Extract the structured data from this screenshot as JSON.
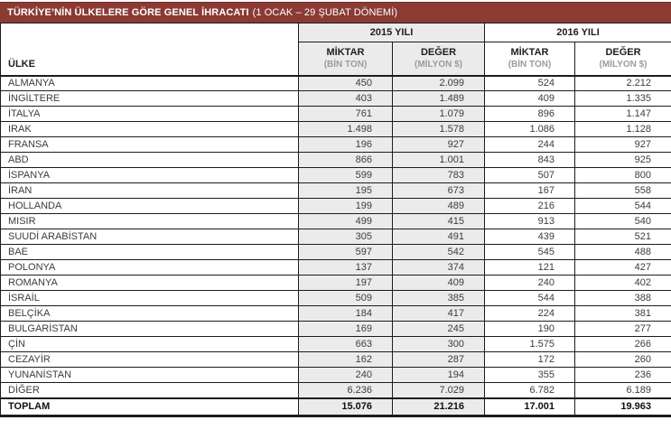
{
  "title": {
    "main": "TÜRKİYE’NİN ÜLKELERE GÖRE GENEL İHRACATI",
    "period": "(1 OCAK – 29 ŞUBAT DÖNEMİ)"
  },
  "colors": {
    "title_bar_bg": "#8b3a34",
    "shaded_column_bg": "#ebebeb",
    "border": "#1c1c1c",
    "unit_text_gray": "#9c9c9c"
  },
  "table": {
    "col_header": "ÜLKE",
    "year_groups": [
      {
        "label": "2015 YILI",
        "shaded": true
      },
      {
        "label": "2016 YILI",
        "shaded": false
      }
    ],
    "sub_headers": [
      {
        "main": "MİKTAR",
        "sub": "(BİN TON)"
      },
      {
        "main": "DEĞER",
        "sub": "(MİLYON $)"
      },
      {
        "main": "MİKTAR",
        "sub": "(BİN TON)"
      },
      {
        "main": "DEĞER",
        "sub": "(MİLYON $)"
      }
    ],
    "rows": [
      {
        "country": "ALMANYA",
        "values": [
          "450",
          "2.099",
          "524",
          "2.212"
        ]
      },
      {
        "country": "İNGİLTERE",
        "values": [
          "403",
          "1.489",
          "409",
          "1.335"
        ]
      },
      {
        "country": "İTALYA",
        "values": [
          "761",
          "1.079",
          "896",
          "1.147"
        ]
      },
      {
        "country": "IRAK",
        "values": [
          "1.498",
          "1.578",
          "1.086",
          "1.128"
        ]
      },
      {
        "country": "FRANSA",
        "values": [
          "196",
          "927",
          "244",
          "927"
        ]
      },
      {
        "country": "ABD",
        "values": [
          "866",
          "1.001",
          "843",
          "925"
        ]
      },
      {
        "country": "İSPANYA",
        "values": [
          "599",
          "783",
          "507",
          "800"
        ]
      },
      {
        "country": "İRAN",
        "values": [
          "195",
          "673",
          "167",
          "558"
        ]
      },
      {
        "country": "HOLLANDA",
        "values": [
          "199",
          "489",
          "216",
          "544"
        ]
      },
      {
        "country": "MISIR",
        "values": [
          "499",
          "415",
          "913",
          "540"
        ]
      },
      {
        "country": "SUUDİ ARABİSTAN",
        "values": [
          "305",
          "491",
          "439",
          "521"
        ]
      },
      {
        "country": "BAE",
        "values": [
          "597",
          "542",
          "545",
          "488"
        ]
      },
      {
        "country": "POLONYA",
        "values": [
          "137",
          "374",
          "121",
          "427"
        ]
      },
      {
        "country": "ROMANYA",
        "values": [
          "197",
          "409",
          "240",
          "402"
        ]
      },
      {
        "country": "İSRAİL",
        "values": [
          "509",
          "385",
          "544",
          "388"
        ]
      },
      {
        "country": "BELÇİKA",
        "values": [
          "184",
          "417",
          "224",
          "381"
        ]
      },
      {
        "country": "BULGARİSTAN",
        "values": [
          "169",
          "245",
          "190",
          "277"
        ]
      },
      {
        "country": "ÇİN",
        "values": [
          "663",
          "300",
          "1.575",
          "266"
        ]
      },
      {
        "country": "CEZAYİR",
        "values": [
          "162",
          "287",
          "172",
          "260"
        ]
      },
      {
        "country": "YUNANİSTAN",
        "values": [
          "240",
          "194",
          "355",
          "236"
        ]
      },
      {
        "country": "DİĞER",
        "values": [
          "6.236",
          "7.029",
          "6.782",
          "6.189"
        ]
      }
    ],
    "total_row": {
      "country": "TOPLAM",
      "values": [
        "15.076",
        "21.216",
        "17.001",
        "19.963"
      ]
    }
  },
  "chart_data": {
    "type": "table",
    "title": "TÜRKİYE’NİN ÜLKELERE GÖRE GENEL İHRACATI (1 OCAK – 29 ŞUBAT DÖNEMİ)",
    "columns": [
      "ÜLKE",
      "2015 YILI MİKTAR (BİN TON)",
      "2015 YILI DEĞER (MİLYON $)",
      "2016 YILI MİKTAR (BİN TON)",
      "2016 YILI DEĞER (MİLYON $)"
    ],
    "rows": [
      [
        "ALMANYA",
        450,
        2099,
        524,
        2212
      ],
      [
        "İNGİLTERE",
        403,
        1489,
        409,
        1335
      ],
      [
        "İTALYA",
        761,
        1079,
        896,
        1147
      ],
      [
        "IRAK",
        1498,
        1578,
        1086,
        1128
      ],
      [
        "FRANSA",
        196,
        927,
        244,
        927
      ],
      [
        "ABD",
        866,
        1001,
        843,
        925
      ],
      [
        "İSPANYA",
        599,
        783,
        507,
        800
      ],
      [
        "İRAN",
        195,
        673,
        167,
        558
      ],
      [
        "HOLLANDA",
        199,
        489,
        216,
        544
      ],
      [
        "MISIR",
        499,
        415,
        913,
        540
      ],
      [
        "SUUDİ ARABİSTAN",
        305,
        491,
        439,
        521
      ],
      [
        "BAE",
        597,
        542,
        545,
        488
      ],
      [
        "POLONYA",
        137,
        374,
        121,
        427
      ],
      [
        "ROMANYA",
        197,
        409,
        240,
        402
      ],
      [
        "İSRAİL",
        509,
        385,
        544,
        388
      ],
      [
        "BELÇİKA",
        184,
        417,
        224,
        381
      ],
      [
        "BULGARİSTAN",
        169,
        245,
        190,
        277
      ],
      [
        "ÇİN",
        663,
        300,
        1575,
        266
      ],
      [
        "CEZAYİR",
        162,
        287,
        172,
        260
      ],
      [
        "YUNANİSTAN",
        240,
        194,
        355,
        236
      ],
      [
        "DİĞER",
        6236,
        7029,
        6782,
        6189
      ]
    ],
    "totals": [
      "TOPLAM",
      15076,
      21216,
      17001,
      19963
    ]
  }
}
